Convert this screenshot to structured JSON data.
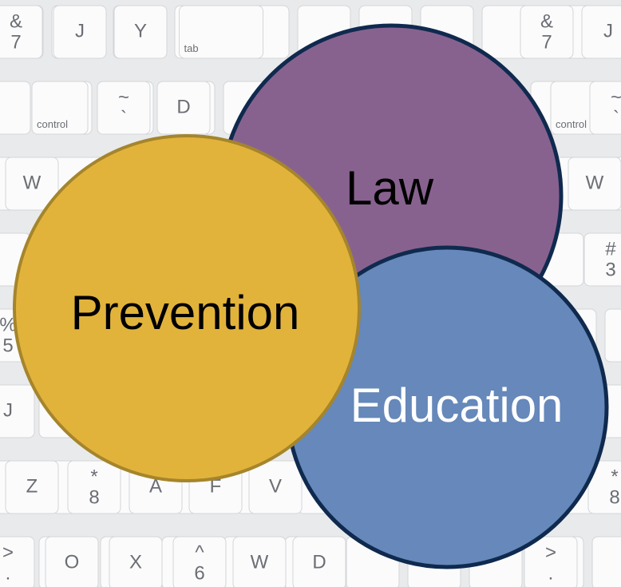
{
  "background_keys": [
    {
      "shift": "&",
      "label": "7"
    },
    {
      "label": "J"
    },
    {
      "label": "Y"
    },
    {
      "label": "tab"
    },
    {
      "shift": "&",
      "label": "7"
    },
    {
      "label": "J"
    },
    {
      "label": "control"
    },
    {
      "shift": "~",
      "label": "`"
    },
    {
      "label": "D"
    },
    {
      "label": "control"
    },
    {
      "shift": "~",
      "label": "`"
    },
    {
      "label": "W"
    },
    {
      "label": "W"
    },
    {
      "shift": "#",
      "label": "3"
    },
    {
      "shift": "%",
      "label": "5"
    },
    {
      "label": "J"
    },
    {
      "label": "Z"
    },
    {
      "shift": "*",
      "label": "8"
    },
    {
      "label": "A"
    },
    {
      "label": "F"
    },
    {
      "label": "V"
    },
    {
      "shift": "*",
      "label": "8"
    },
    {
      "shift": ">",
      "label": "."
    },
    {
      "label": "O"
    },
    {
      "label": "X"
    },
    {
      "shift": "^",
      "label": "6"
    },
    {
      "label": "W"
    },
    {
      "label": "D"
    },
    {
      "shift": ">",
      "label": "."
    }
  ],
  "nodes": [
    {
      "label": "Law"
    },
    {
      "label": "Education"
    },
    {
      "label": "Prevention"
    }
  ]
}
